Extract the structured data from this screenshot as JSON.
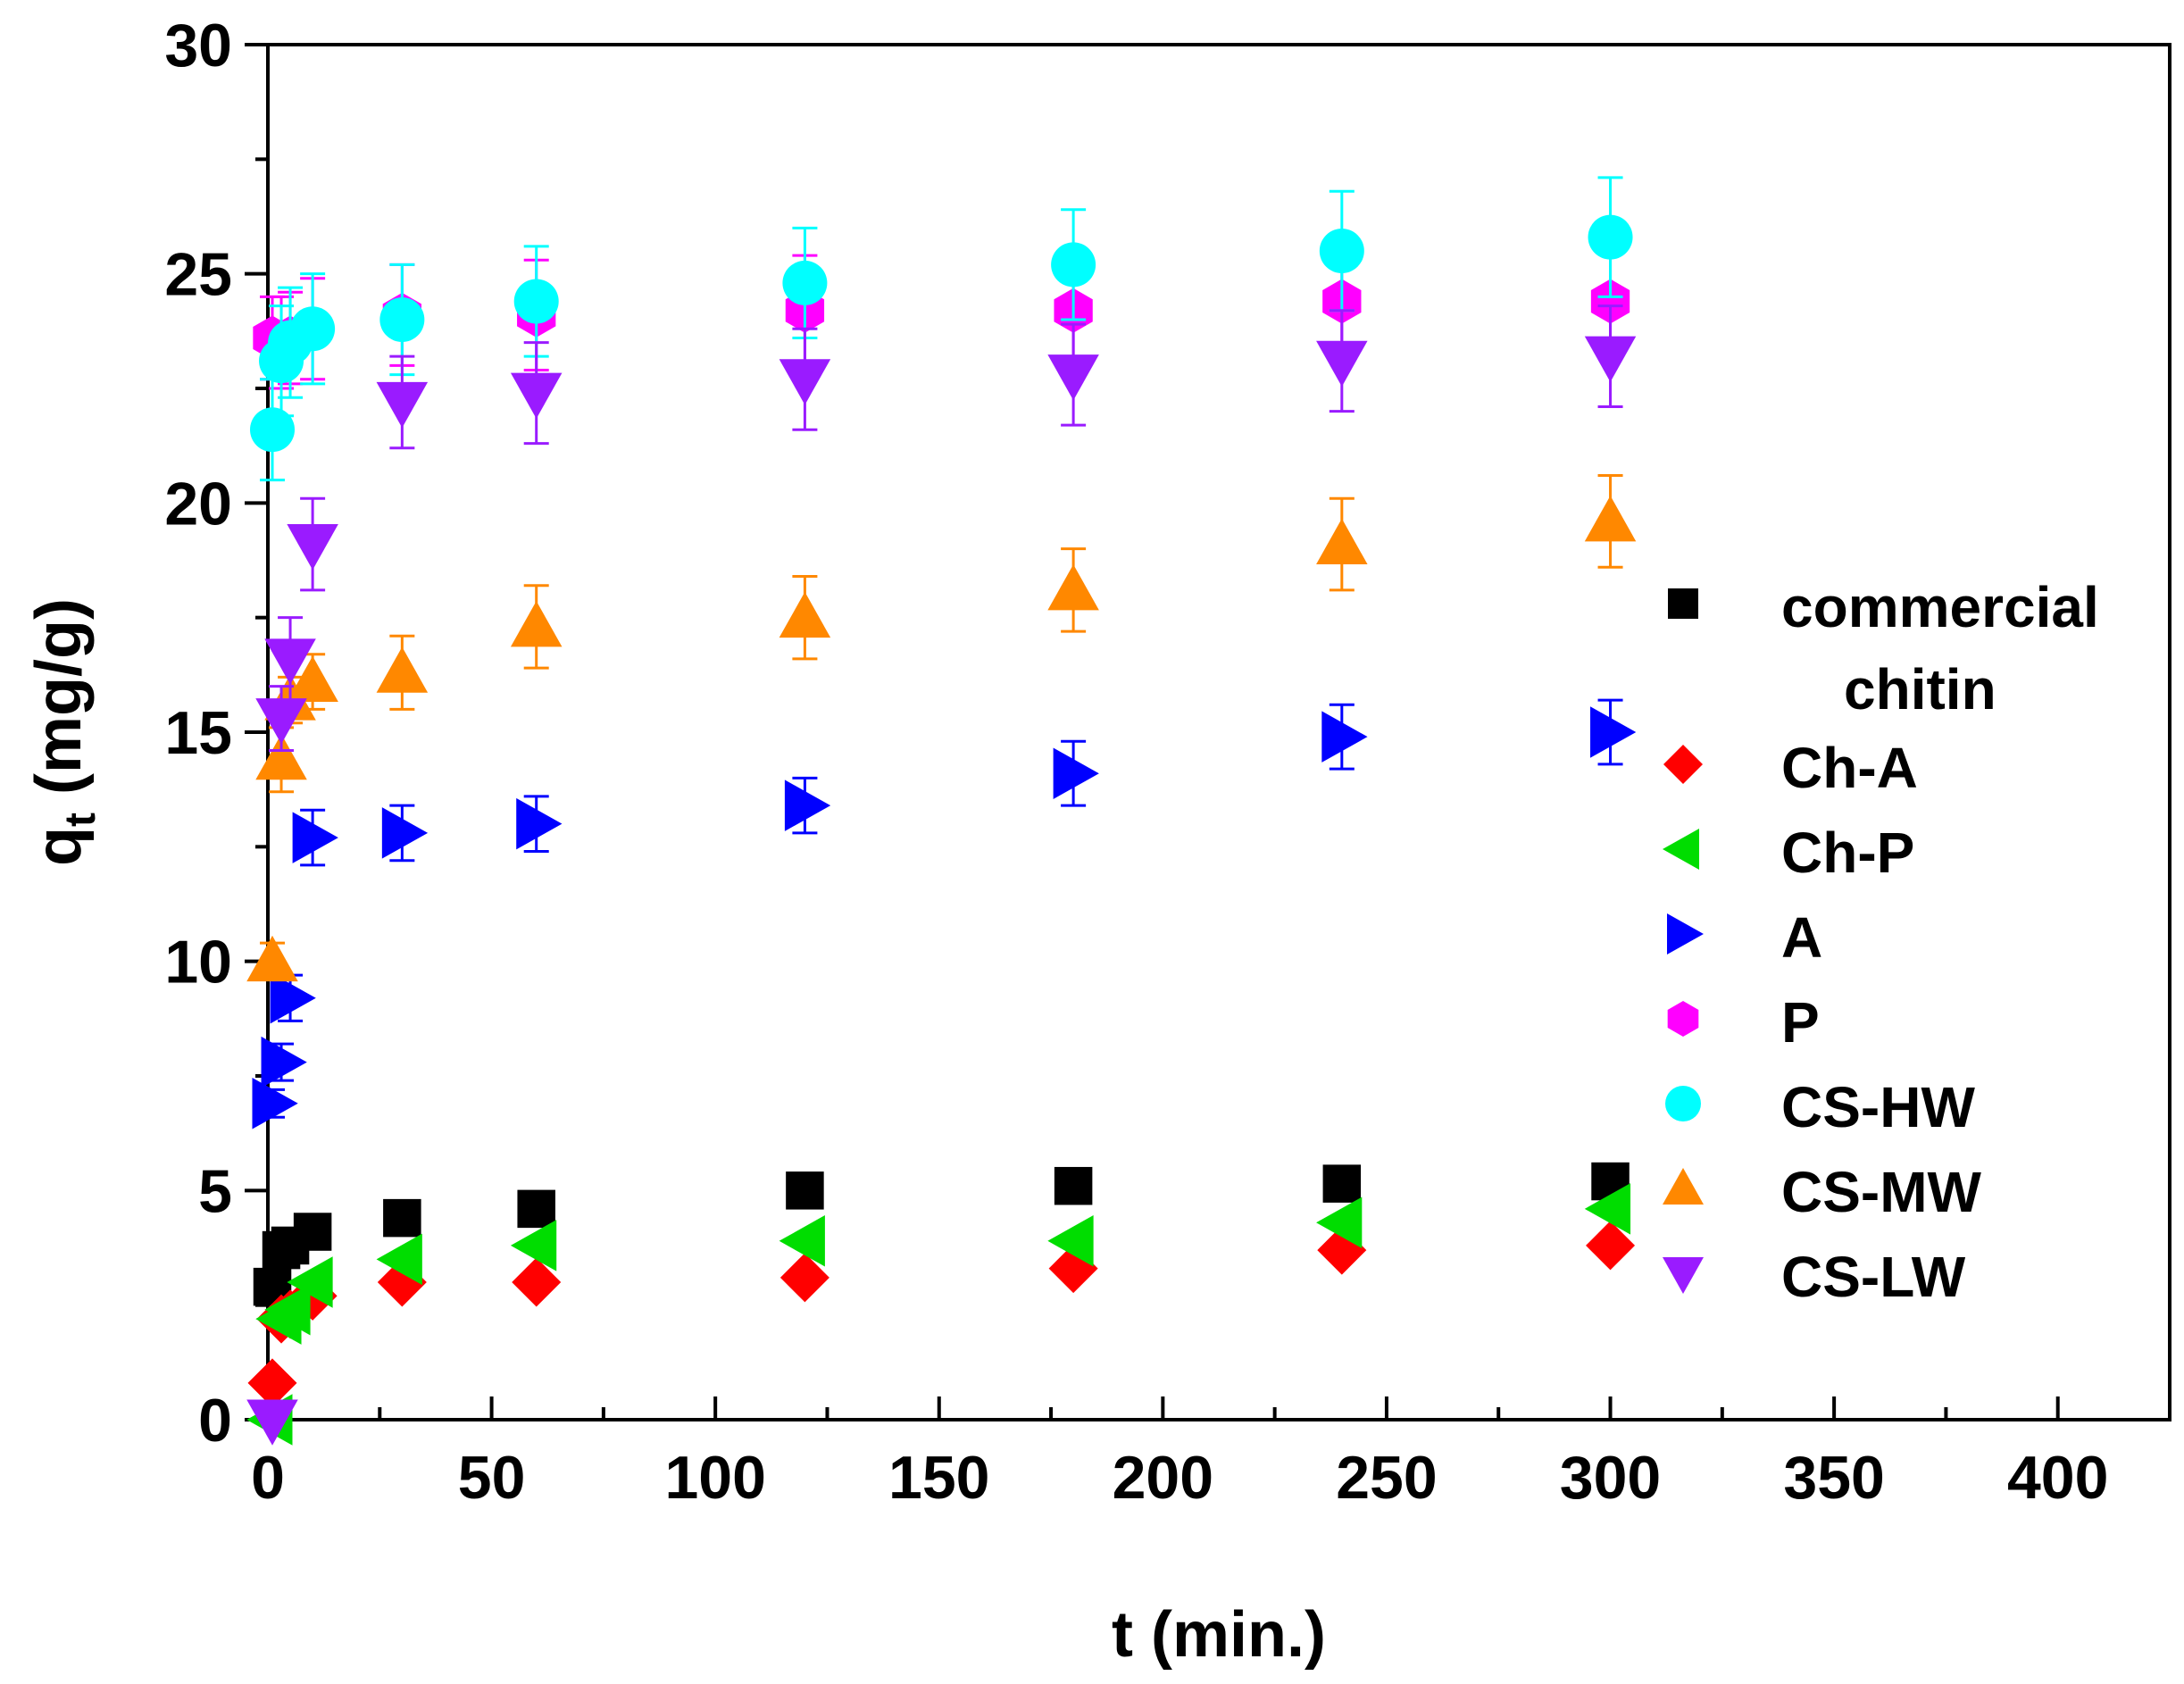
{
  "chart_data": {
    "type": "scatter",
    "xlabel": "t (min.)",
    "ylabel": "q",
    "ylabel_sub": "t",
    "ylabel_units": " (mg/g)",
    "xlim": [
      0,
      425
    ],
    "ylim": [
      0,
      30
    ],
    "xticks": [
      0,
      50,
      100,
      150,
      200,
      250,
      300,
      350,
      400
    ],
    "yticks": [
      0,
      5,
      10,
      15,
      20,
      25,
      30
    ],
    "grid": false,
    "legend_position": "right",
    "series": [
      {
        "name": "commercial chitin",
        "legend_lines": [
          "commercial",
          "chitin"
        ],
        "marker": "square",
        "color": "#000000",
        "x": [
          1,
          3,
          5,
          10,
          30,
          60,
          120,
          180,
          240,
          300
        ],
        "y": [
          2.9,
          3.7,
          3.8,
          4.1,
          4.4,
          4.6,
          5.0,
          5.1,
          5.15,
          5.2
        ],
        "err": [
          0,
          0,
          0,
          0,
          0,
          0,
          0,
          0,
          0,
          0
        ]
      },
      {
        "name": "Ch-A",
        "legend_lines": [
          "Ch-A"
        ],
        "marker": "diamond",
        "color": "#ff0000",
        "x": [
          1,
          3,
          5,
          10,
          30,
          60,
          120,
          180,
          240,
          300
        ],
        "y": [
          0.8,
          2.2,
          2.3,
          2.7,
          3.0,
          3.0,
          3.1,
          3.3,
          3.7,
          3.8
        ],
        "err": [
          0,
          0,
          0,
          0,
          0,
          0,
          0,
          0,
          0,
          0
        ]
      },
      {
        "name": "Ch-P",
        "legend_lines": [
          "Ch-P"
        ],
        "marker": "tri-left",
        "color": "#00dd00",
        "x": [
          1,
          3,
          5,
          10,
          30,
          60,
          120,
          180,
          240,
          300
        ],
        "y": [
          0.0,
          2.2,
          2.4,
          3.0,
          3.5,
          3.8,
          3.9,
          3.9,
          4.3,
          4.6
        ],
        "err": [
          0,
          0,
          0,
          0,
          0,
          0,
          0,
          0,
          0,
          0
        ]
      },
      {
        "name": "A",
        "legend_lines": [
          "A"
        ],
        "marker": "tri-right",
        "color": "#0000ff",
        "x": [
          1,
          3,
          5,
          10,
          30,
          60,
          120,
          180,
          240,
          300
        ],
        "y": [
          6.9,
          7.8,
          9.2,
          12.7,
          12.8,
          13.0,
          13.4,
          14.1,
          14.9,
          15.0
        ],
        "err": [
          0.3,
          0.4,
          0.5,
          0.6,
          0.6,
          0.6,
          0.6,
          0.7,
          0.7,
          0.7
        ]
      },
      {
        "name": "P",
        "legend_lines": [
          "P"
        ],
        "marker": "hexagon",
        "color": "#ff00ff",
        "x": [
          1,
          3,
          5,
          10,
          30,
          60,
          120,
          180,
          240,
          300
        ],
        "y": [
          23.6,
          23.5,
          23.6,
          23.8,
          24.1,
          24.1,
          24.2,
          24.2,
          24.4,
          24.4
        ],
        "err": [
          0.9,
          1.0,
          1.0,
          1.1,
          1.1,
          1.2,
          1.2,
          1.2,
          1.2,
          1.2
        ]
      },
      {
        "name": "CS-HW",
        "legend_lines": [
          "CS-HW"
        ],
        "marker": "circle",
        "color": "#00ffff",
        "x": [
          1,
          3,
          5,
          10,
          30,
          60,
          120,
          180,
          240,
          300
        ],
        "y": [
          21.6,
          23.1,
          23.5,
          23.8,
          24.0,
          24.4,
          24.8,
          25.2,
          25.5,
          25.8
        ],
        "err": [
          1.1,
          1.2,
          1.2,
          1.2,
          1.2,
          1.2,
          1.2,
          1.2,
          1.3,
          1.3
        ]
      },
      {
        "name": "CS-MW",
        "legend_lines": [
          "CS-MW"
        ],
        "marker": "tri-up",
        "color": "#ff8800",
        "x": [
          1,
          3,
          5,
          10,
          30,
          60,
          120,
          180,
          240,
          300
        ],
        "y": [
          10.0,
          14.4,
          15.7,
          16.1,
          16.3,
          17.3,
          17.5,
          18.1,
          19.1,
          19.6
        ],
        "err": [
          0.4,
          0.7,
          0.5,
          0.6,
          0.8,
          0.9,
          0.9,
          0.9,
          1.0,
          1.0
        ]
      },
      {
        "name": "CS-LW",
        "legend_lines": [
          "CS-LW"
        ],
        "marker": "tri-down",
        "color": "#9a1bff",
        "x": [
          1,
          3,
          5,
          10,
          30,
          60,
          120,
          180,
          240,
          300
        ],
        "y": [
          0.0,
          15.3,
          16.6,
          19.1,
          22.2,
          22.4,
          22.7,
          22.8,
          23.1,
          23.2
        ],
        "err": [
          0,
          0.7,
          0.9,
          1.0,
          1.0,
          1.1,
          1.1,
          1.1,
          1.1,
          1.1
        ]
      }
    ]
  }
}
